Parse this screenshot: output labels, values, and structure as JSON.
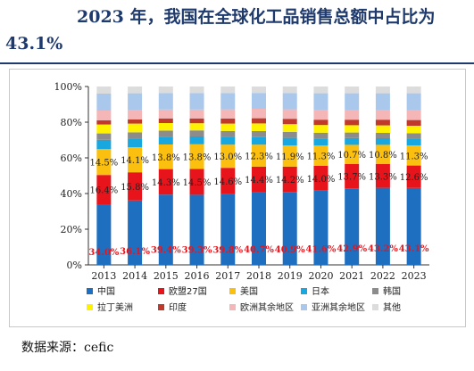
{
  "header": {
    "title_line1": "2023 年，我国在全球化工品销售总额中占比为",
    "title_line2": "43.1%"
  },
  "source": "数据来源：cefic",
  "chart_data": {
    "type": "bar",
    "stacked": true,
    "categories": [
      "2013",
      "2014",
      "2015",
      "2016",
      "2017",
      "2018",
      "2019",
      "2020",
      "2021",
      "2022",
      "2023"
    ],
    "ylim": [
      0,
      100
    ],
    "yticks": [
      "0%",
      "20%",
      "40%",
      "60%",
      "80%",
      "100%"
    ],
    "legend_position": "bottom",
    "grid": false,
    "series": [
      {
        "name": "中国",
        "color": "#1f6fc0",
        "label_color": "#e8141c",
        "values": [
          34.0,
          36.1,
          39.4,
          39.3,
          39.8,
          40.7,
          40.9,
          41.6,
          42.9,
          43.2,
          43.1
        ],
        "labels": [
          "34.0%",
          "36.1%",
          "39.4%",
          "39.3%",
          "39.8%",
          "40.7%",
          "40.9%",
          "41.6%",
          "42.9%",
          "43.2%",
          "43.1%"
        ]
      },
      {
        "name": "欧盟27国",
        "color": "#e8141c",
        "label_color": "#222222",
        "values": [
          16.4,
          15.8,
          14.3,
          14.5,
          14.6,
          14.4,
          14.2,
          14.0,
          13.7,
          13.3,
          12.6
        ],
        "labels": [
          "16.4%",
          "15.8%",
          "14.3%",
          "14.5%",
          "14.6%",
          "14.4%",
          "14.2%",
          "14.0%",
          "13.7%",
          "13.3%",
          "12.6%"
        ]
      },
      {
        "name": "美国",
        "color": "#fbbf0f",
        "label_color": "#222222",
        "values": [
          14.5,
          14.1,
          13.8,
          13.8,
          13.0,
          12.3,
          11.9,
          11.3,
          10.7,
          10.8,
          11.3
        ],
        "labels": [
          "14.5%",
          "14.1%",
          "13.8%",
          "13.8%",
          "13.0%",
          "12.3%",
          "11.9%",
          "11.3%",
          "10.7%",
          "10.8%",
          "11.3%"
        ]
      },
      {
        "name": "日本",
        "color": "#19a7e0",
        "values": [
          5.2,
          4.8,
          4.4,
          4.4,
          4.3,
          4.2,
          4.2,
          4.0,
          3.8,
          3.7,
          3.8
        ]
      },
      {
        "name": "韩国",
        "color": "#8c8c8c",
        "values": [
          3.6,
          3.5,
          3.4,
          3.4,
          3.4,
          3.4,
          3.3,
          3.2,
          3.1,
          3.0,
          3.0
        ]
      },
      {
        "name": "拉丁美洲",
        "color": "#fff200",
        "values": [
          5.0,
          4.9,
          4.2,
          4.0,
          4.1,
          4.3,
          4.4,
          4.3,
          4.1,
          4.2,
          4.2
        ]
      },
      {
        "name": "印度",
        "color": "#c0392b",
        "values": [
          2.3,
          2.4,
          2.6,
          2.7,
          2.8,
          2.9,
          3.0,
          3.0,
          3.1,
          3.2,
          3.2
        ]
      },
      {
        "name": "欧洲其余地区",
        "color": "#f4b6b6",
        "values": [
          5.5,
          5.2,
          5.0,
          5.0,
          5.2,
          5.3,
          5.3,
          5.2,
          5.3,
          5.4,
          5.5
        ]
      },
      {
        "name": "亚洲其余地区",
        "color": "#a9c8ec",
        "values": [
          9.5,
          9.4,
          9.2,
          9.2,
          9.1,
          8.9,
          9.1,
          9.6,
          9.5,
          9.4,
          9.5
        ]
      },
      {
        "name": "其他",
        "color": "#dcdcdc",
        "values": [
          4.0,
          3.8,
          3.7,
          3.7,
          3.7,
          3.6,
          3.7,
          3.8,
          3.8,
          3.8,
          3.8
        ]
      }
    ]
  }
}
